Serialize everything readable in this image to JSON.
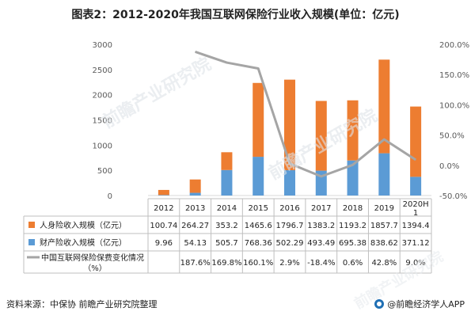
{
  "title": "图表2：2012-2020年我国互联网保险行业收入规模(单位：亿元)",
  "source": "资料来源：中保协 前瞻产业研究院整理",
  "brand": "@前瞻经济学人APP",
  "watermark": "前瞻产业研究院",
  "colors": {
    "life": "#ed7d31",
    "property": "#5b9bd5",
    "growth": "#a5a5a5",
    "axis_text": "#595959",
    "grid": "#d9d9d9"
  },
  "chart_data": {
    "type": "bar",
    "stacked": true,
    "categories": [
      "2012",
      "2013",
      "2014",
      "2015",
      "2016",
      "2017",
      "2018",
      "2019",
      "2020H1"
    ],
    "series": [
      {
        "name": "人身险收入规模（亿元）",
        "type": "bar",
        "axis": "left",
        "values": [
          100.74,
          264.27,
          353.2,
          1465.6,
          1796.7,
          1383.2,
          1193.2,
          1857.7,
          1394.4
        ],
        "labels": [
          "100.74",
          "264.27",
          "353.2",
          "1465.6",
          "1796.7",
          "1383.2",
          "1193.2",
          "1857.7",
          "1394.4"
        ]
      },
      {
        "name": "财产险收入规模（亿元）",
        "type": "bar",
        "axis": "left",
        "values": [
          9.96,
          54.13,
          505.7,
          768.36,
          502.29,
          493.49,
          695.38,
          838.62,
          371.12
        ],
        "labels": [
          "9.96",
          "54.13",
          "505.7",
          "768.36",
          "502.29",
          "493.49",
          "695.38",
          "838.62",
          "371.12"
        ]
      },
      {
        "name": "中国互联网保险保费变化情况（%）",
        "type": "line",
        "axis": "right",
        "values": [
          null,
          187.6,
          169.8,
          160.1,
          2.9,
          -18.4,
          0.6,
          42.8,
          9.0
        ],
        "labels": [
          "",
          "187.6%",
          "169.8%",
          "160.1%",
          "2.9%",
          "-18.4%",
          "0.6%",
          "42.8%",
          "9.0%"
        ]
      }
    ],
    "y_left": {
      "min": 0,
      "max": 3000,
      "ticks": [
        "0",
        "500",
        "1000",
        "1500",
        "2000",
        "2500",
        "3000"
      ]
    },
    "y_right": {
      "min": -50,
      "max": 200,
      "ticks": [
        "-50.0%",
        "0.0%",
        "50.0%",
        "100.0%",
        "150.0%",
        "200.0%"
      ]
    },
    "grid": false,
    "legend": "data-table"
  }
}
